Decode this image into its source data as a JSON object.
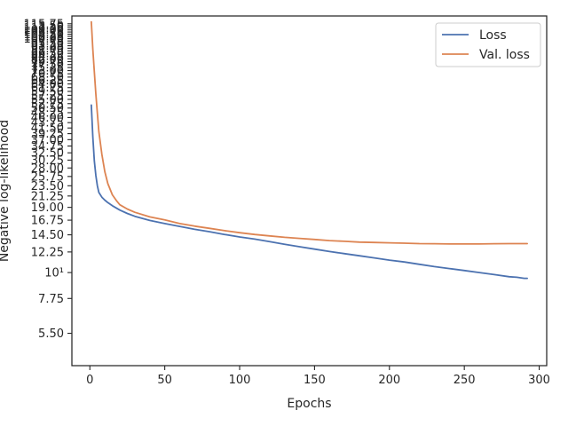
{
  "chart_data": {
    "type": "line",
    "xlabel": "Epochs",
    "ylabel": "Negative log-likelihood",
    "yscale": "log",
    "xlim": [
      -12,
      305
    ],
    "ylim": [
      4.0,
      125.0
    ],
    "x_ticks": [
      0,
      50,
      100,
      150,
      200,
      250,
      300
    ],
    "y_ticks": [
      {
        "value": 5.5,
        "label": "5.50"
      },
      {
        "value": 7.75,
        "label": "7.75"
      },
      {
        "value": 10,
        "label": "10¹"
      },
      {
        "value": 12.25,
        "label": "12.25"
      },
      {
        "value": 14.5,
        "label": "14.50"
      },
      {
        "value": 16.75,
        "label": "16.75"
      },
      {
        "value": 19.0,
        "label": "19.00"
      },
      {
        "value": 21.25,
        "label": "21.25"
      },
      {
        "value": 23.5,
        "label": "23.50"
      },
      {
        "value": 25.75,
        "label": "25.75"
      },
      {
        "value": 28.0,
        "label": "28.00"
      },
      {
        "value": 30.25,
        "label": "30.25"
      },
      {
        "value": 32.5,
        "label": "32.50"
      },
      {
        "value": 34.75,
        "label": "34.75"
      },
      {
        "value": 37.0,
        "label": "37.00"
      },
      {
        "value": 39.25,
        "label": "39.25"
      },
      {
        "value": 41.5,
        "label": "41.50"
      },
      {
        "value": 43.75,
        "label": "43.75"
      },
      {
        "value": 46.0,
        "label": "46.00"
      },
      {
        "value": 48.25,
        "label": "48.25"
      },
      {
        "value": 50.5,
        "label": "50.50"
      },
      {
        "value": 52.75,
        "label": "52.75"
      },
      {
        "value": 55.0,
        "label": "55.00"
      },
      {
        "value": 57.25,
        "label": "57.25"
      },
      {
        "value": 59.5,
        "label": "59.50"
      },
      {
        "value": 61.75,
        "label": "61.75"
      },
      {
        "value": 64.0,
        "label": "64.00"
      },
      {
        "value": 66.25,
        "label": "66.25"
      },
      {
        "value": 68.5,
        "label": "68.50"
      },
      {
        "value": 70.75,
        "label": "70.75"
      },
      {
        "value": 73.0,
        "label": "73.00"
      },
      {
        "value": 75.25,
        "label": "75.25"
      },
      {
        "value": 77.5,
        "label": "77.50"
      },
      {
        "value": 79.75,
        "label": "79.75"
      },
      {
        "value": 82.0,
        "label": "82.00"
      },
      {
        "value": 84.25,
        "label": "84.25"
      },
      {
        "value": 86.5,
        "label": "86.50"
      },
      {
        "value": 88.75,
        "label": "88.75"
      },
      {
        "value": 91.0,
        "label": "91.00"
      },
      {
        "value": 93.25,
        "label": "93.25"
      },
      {
        "value": 95.5,
        "label": "95.50"
      },
      {
        "value": 97.75,
        "label": "97.75"
      },
      {
        "value": 100.0,
        "label": "100.00"
      },
      {
        "value": 102.25,
        "label": "102.25"
      },
      {
        "value": 104.5,
        "label": "104.50"
      },
      {
        "value": 106.75,
        "label": "106.75"
      },
      {
        "value": 109.0,
        "label": "109.00"
      },
      {
        "value": 111.25,
        "label": "111.25"
      },
      {
        "value": 113.5,
        "label": "113.50"
      },
      {
        "value": 115.75,
        "label": "115.75"
      }
    ],
    "legend_position": "top-right",
    "series": [
      {
        "name": "Loss",
        "color": "#4c72b0",
        "x": [
          1,
          2,
          3,
          4,
          5,
          6,
          8,
          10,
          12,
          15,
          20,
          25,
          30,
          40,
          50,
          60,
          70,
          80,
          90,
          100,
          110,
          120,
          130,
          140,
          150,
          160,
          170,
          180,
          190,
          200,
          210,
          220,
          230,
          240,
          250,
          260,
          270,
          280,
          285,
          290,
          292
        ],
        "y": [
          52.0,
          38.0,
          30.0,
          26.0,
          23.5,
          22.0,
          21.0,
          20.4,
          19.9,
          19.3,
          18.5,
          17.9,
          17.4,
          16.7,
          16.2,
          15.75,
          15.3,
          14.95,
          14.55,
          14.2,
          13.9,
          13.55,
          13.2,
          12.9,
          12.6,
          12.3,
          12.05,
          11.8,
          11.55,
          11.3,
          11.1,
          10.85,
          10.6,
          10.4,
          10.2,
          10.0,
          9.8,
          9.6,
          9.55,
          9.45,
          9.45
        ]
      },
      {
        "name": "Val. loss",
        "color": "#dd8452",
        "x": [
          1,
          2,
          3,
          4,
          5,
          6,
          8,
          10,
          12,
          15,
          18,
          20,
          25,
          30,
          40,
          50,
          60,
          70,
          80,
          90,
          100,
          110,
          120,
          130,
          140,
          150,
          160,
          170,
          180,
          190,
          200,
          210,
          220,
          230,
          240,
          250,
          260,
          270,
          280,
          290,
          292
        ],
        "y": [
          118.0,
          90.0,
          72.0,
          58.0,
          48.0,
          40.0,
          32.0,
          27.0,
          24.0,
          21.5,
          20.2,
          19.5,
          18.7,
          18.1,
          17.3,
          16.8,
          16.2,
          15.8,
          15.45,
          15.1,
          14.8,
          14.55,
          14.35,
          14.15,
          14.0,
          13.85,
          13.7,
          13.6,
          13.5,
          13.45,
          13.4,
          13.35,
          13.3,
          13.28,
          13.25,
          13.25,
          13.25,
          13.28,
          13.3,
          13.3,
          13.3
        ]
      }
    ]
  }
}
